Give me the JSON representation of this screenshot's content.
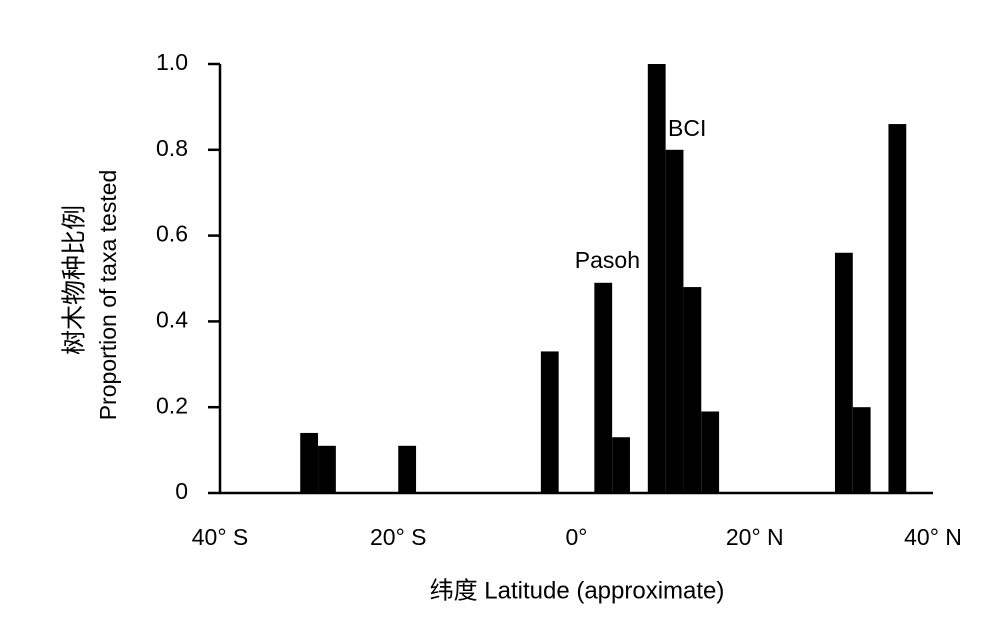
{
  "chart_data": {
    "type": "bar",
    "xlabel": "纬度 Latitude (approximate)",
    "ylabel": [
      "树木物种比例",
      "Proportion of taxa tested"
    ],
    "x": [
      -30,
      -28,
      -19,
      -3,
      3,
      5,
      9,
      11,
      13,
      15,
      30,
      32,
      36
    ],
    "values": [
      0.14,
      0.11,
      0.11,
      0.33,
      0.49,
      0.13,
      1.0,
      0.8,
      0.48,
      0.19,
      0.56,
      0.2,
      0.86
    ],
    "color": "#000000",
    "xlim": [
      -40,
      40
    ],
    "xticks": [
      {
        "value": -40,
        "label": "40° S"
      },
      {
        "value": -20,
        "label": "20° S"
      },
      {
        "value": 0,
        "label": "0°"
      },
      {
        "value": 20,
        "label": "20° N"
      },
      {
        "value": 40,
        "label": "40° N"
      }
    ],
    "ylim": [
      0,
      1
    ],
    "yticks": [
      0,
      0.2,
      0.4,
      0.6,
      0.8,
      {
        "value": 1,
        "label": "1.0"
      }
    ],
    "annotations": [
      {
        "text": "Pasoh"
      },
      {
        "text": "BCI"
      }
    ],
    "grid": false
  }
}
